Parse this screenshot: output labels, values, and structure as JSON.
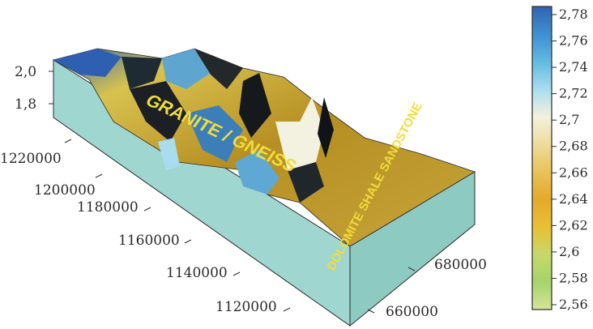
{
  "chart_data": {
    "type": "surface-3d",
    "title": "",
    "z_ticks": [
      "2,0",
      "1,8"
    ],
    "y_ticks": [
      "1220000",
      "1200000",
      "1180000",
      "1160000",
      "1140000",
      "1120000"
    ],
    "x_ticks": [
      "680000",
      "660000"
    ],
    "annotations": [
      "GRANITE / GNEISS",
      "DOLOMITE SHALE SANDSTONE"
    ],
    "colorbar": {
      "range": [
        2.56,
        2.78
      ],
      "labels": [
        "2,78",
        "2,76",
        "2,74",
        "2,72",
        "2,7",
        "2,68",
        "2,66",
        "2,64",
        "2,62",
        "2,6",
        "2,58",
        "2,56"
      ],
      "stops": [
        {
          "value": 2.78,
          "color": "#2f64b2"
        },
        {
          "value": 2.76,
          "color": "#3e8fd0"
        },
        {
          "value": 2.74,
          "color": "#62b9e1"
        },
        {
          "value": 2.72,
          "color": "#a9dcef"
        },
        {
          "value": 2.7,
          "color": "#f3f1df"
        },
        {
          "value": 2.68,
          "color": "#eedb9c"
        },
        {
          "value": 2.66,
          "color": "#e9c25a"
        },
        {
          "value": 2.64,
          "color": "#e5a92a"
        },
        {
          "value": 2.62,
          "color": "#e9bf35"
        },
        {
          "value": 2.6,
          "color": "#c6d86a"
        },
        {
          "value": 2.58,
          "color": "#a5d46a"
        },
        {
          "value": 2.56,
          "color": "#d6e49a"
        }
      ]
    },
    "colors": {
      "block_side": "#9fd6cf",
      "block_edge": "#2a2a2a",
      "annotation": "#f2dc3a"
    }
  }
}
